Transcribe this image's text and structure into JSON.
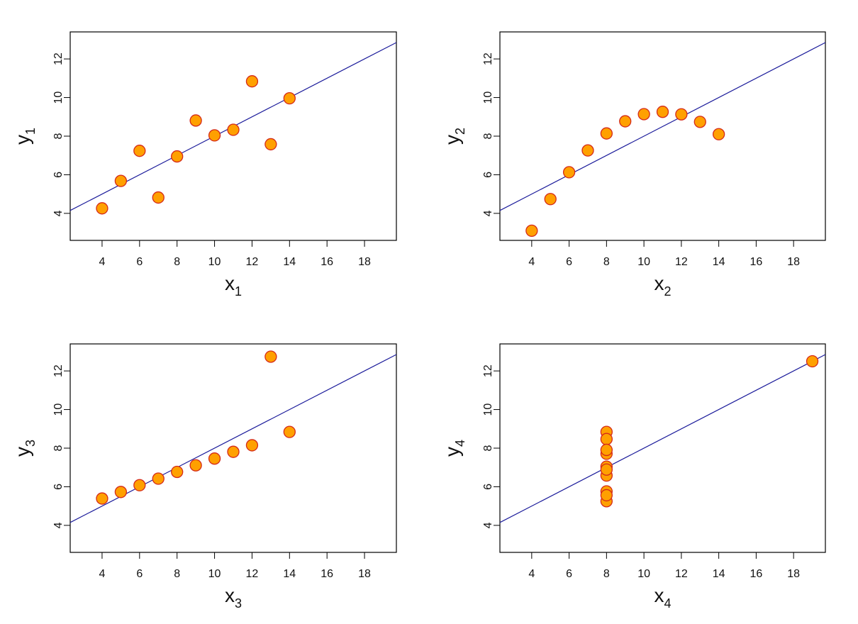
{
  "colors": {
    "point_fill": "#ffa000",
    "point_stroke": "#d42a1a",
    "fit_line": "#1a1a9a",
    "frame": "#000000"
  },
  "chart_data": [
    {
      "type": "scatter",
      "xlabel": "x",
      "xlabel_sub": "1",
      "ylabel": "y",
      "ylabel_sub": "1",
      "xlim": [
        2.3,
        19.7
      ],
      "ylim": [
        2.6,
        13.4
      ],
      "xticks": [
        4,
        6,
        8,
        10,
        12,
        14,
        16,
        18
      ],
      "yticks": [
        4,
        6,
        8,
        10,
        12
      ],
      "x": [
        10,
        8,
        13,
        9,
        11,
        14,
        6,
        4,
        12,
        7,
        5
      ],
      "y": [
        8.04,
        6.95,
        7.58,
        8.81,
        8.33,
        9.96,
        7.24,
        4.26,
        10.84,
        4.82,
        5.68
      ],
      "fit": {
        "intercept": 3.0,
        "slope": 0.5
      }
    },
    {
      "type": "scatter",
      "xlabel": "x",
      "xlabel_sub": "2",
      "ylabel": "y",
      "ylabel_sub": "2",
      "xlim": [
        2.3,
        19.7
      ],
      "ylim": [
        2.6,
        13.4
      ],
      "xticks": [
        4,
        6,
        8,
        10,
        12,
        14,
        16,
        18
      ],
      "yticks": [
        4,
        6,
        8,
        10,
        12
      ],
      "x": [
        10,
        8,
        13,
        9,
        11,
        14,
        6,
        4,
        12,
        7,
        5
      ],
      "y": [
        9.14,
        8.14,
        8.74,
        8.77,
        9.26,
        8.1,
        6.13,
        3.1,
        9.13,
        7.26,
        4.74
      ],
      "fit": {
        "intercept": 3.0,
        "slope": 0.5
      }
    },
    {
      "type": "scatter",
      "xlabel": "x",
      "xlabel_sub": "3",
      "ylabel": "y",
      "ylabel_sub": "3",
      "xlim": [
        2.3,
        19.7
      ],
      "ylim": [
        2.6,
        13.4
      ],
      "xticks": [
        4,
        6,
        8,
        10,
        12,
        14,
        16,
        18
      ],
      "yticks": [
        4,
        6,
        8,
        10,
        12
      ],
      "x": [
        10,
        8,
        13,
        9,
        11,
        14,
        6,
        4,
        12,
        7,
        5
      ],
      "y": [
        7.46,
        6.77,
        12.74,
        7.11,
        7.81,
        8.84,
        6.08,
        5.39,
        8.15,
        6.42,
        5.73
      ],
      "fit": {
        "intercept": 3.0,
        "slope": 0.5
      }
    },
    {
      "type": "scatter",
      "xlabel": "x",
      "xlabel_sub": "4",
      "ylabel": "y",
      "ylabel_sub": "4",
      "xlim": [
        2.3,
        19.7
      ],
      "ylim": [
        2.6,
        13.4
      ],
      "xticks": [
        4,
        6,
        8,
        10,
        12,
        14,
        16,
        18
      ],
      "yticks": [
        4,
        6,
        8,
        10,
        12
      ],
      "x": [
        8,
        8,
        8,
        8,
        8,
        8,
        8,
        19,
        8,
        8,
        8
      ],
      "y": [
        6.58,
        5.76,
        7.71,
        8.84,
        8.47,
        7.04,
        5.25,
        12.5,
        5.56,
        7.91,
        6.89
      ],
      "fit": {
        "intercept": 3.0,
        "slope": 0.5
      }
    }
  ]
}
